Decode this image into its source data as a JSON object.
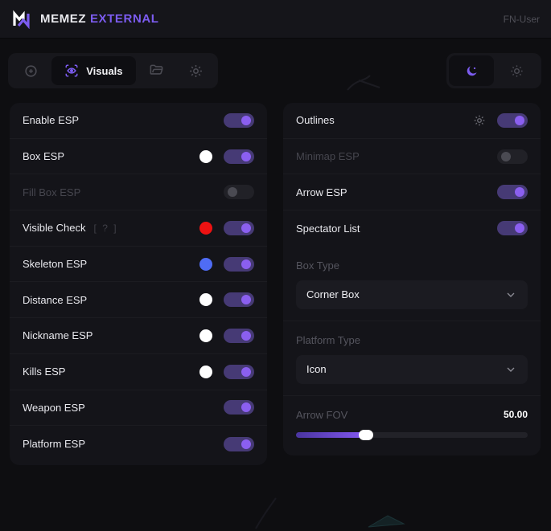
{
  "header": {
    "brand_primary": "MEMEZ ",
    "brand_secondary": "EXTERNAL",
    "user": "FN-User"
  },
  "toolbar": {
    "tabs": [
      {
        "id": "aim",
        "icon": "crosshair-icon",
        "label": "",
        "active": false
      },
      {
        "id": "visuals",
        "icon": "scan-eye-icon",
        "label": "Visuals",
        "active": true
      },
      {
        "id": "configs",
        "icon": "folder-icon",
        "label": "",
        "active": false
      },
      {
        "id": "settings",
        "icon": "gear-icon",
        "label": "",
        "active": false
      }
    ],
    "theme": {
      "active": "dark",
      "dark_icon": "moon-icon",
      "light_icon": "sun-icon"
    }
  },
  "panels": {
    "left": {
      "rows": [
        {
          "label": "Enable ESP",
          "state": "on"
        },
        {
          "label": "Box ESP",
          "state": "on",
          "swatch": "#ffffff"
        },
        {
          "label": "Fill Box ESP",
          "state": "off",
          "muted": true
        },
        {
          "label": "Visible Check",
          "state": "on",
          "swatch": "#ee1212",
          "hint": "[ ? ]"
        },
        {
          "label": "Skeleton ESP",
          "state": "on",
          "swatch": "#4f6cf5"
        },
        {
          "label": "Distance ESP",
          "state": "on",
          "swatch": "#ffffff"
        },
        {
          "label": "Nickname ESP",
          "state": "on",
          "swatch": "#ffffff"
        },
        {
          "label": "Kills ESP",
          "state": "on",
          "swatch": "#ffffff"
        },
        {
          "label": "Weapon ESP",
          "state": "on"
        },
        {
          "label": "Platform ESP",
          "state": "on"
        }
      ]
    },
    "right": {
      "rows": [
        {
          "label": "Outlines",
          "state": "on",
          "gear": true
        },
        {
          "label": "Minimap ESP",
          "state": "off",
          "muted": true
        },
        {
          "label": "Arrow ESP",
          "state": "on"
        },
        {
          "label": "Spectator List",
          "state": "on"
        }
      ],
      "selects": [
        {
          "label": "Box Type",
          "value": "Corner Box"
        },
        {
          "label": "Platform Type",
          "value": "Icon"
        }
      ],
      "slider": {
        "label": "Arrow FOV",
        "value": "50.00",
        "percent": 29
      }
    }
  },
  "colors": {
    "accent": "#7c5cf0",
    "toggle_on_track": "#463a75",
    "toggle_on_knob": "#8b5ff0",
    "toggle_off_track": "#212127",
    "toggle_off_knob": "#4a4a52",
    "panel_bg": "#141419",
    "page_bg": "#0e0e11"
  }
}
